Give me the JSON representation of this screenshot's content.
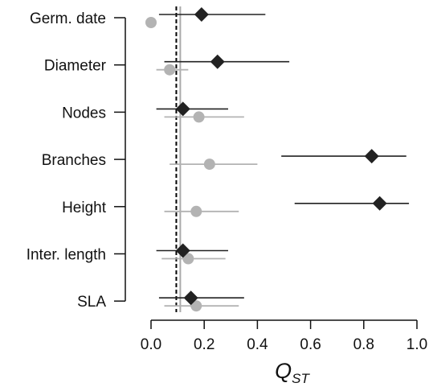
{
  "chart_data": {
    "type": "scatter",
    "title": "",
    "xlabel_main": "Q",
    "xlabel_sub": "ST",
    "xlim": [
      0.0,
      1.0
    ],
    "xticks": [
      "0.0",
      "0.2",
      "0.4",
      "0.6",
      "0.8",
      "1.0"
    ],
    "xtick_values": [
      0.0,
      0.2,
      0.4,
      0.6,
      0.8,
      1.0
    ],
    "categories": [
      "Germ. date",
      "Diameter",
      "Nodes",
      "Branches",
      "Height",
      "Inter. length",
      "SLA"
    ],
    "reference_lines": [
      {
        "value": 0.095,
        "style": "dashed",
        "color": "#000000"
      },
      {
        "value": 0.11,
        "style": "solid",
        "color": "#aaaaaa"
      }
    ],
    "series": [
      {
        "marker": "diamond",
        "color": "#222222",
        "points": [
          {
            "value": 0.19,
            "low": 0.03,
            "high": 0.43
          },
          {
            "value": 0.25,
            "low": 0.05,
            "high": 0.52
          },
          {
            "value": 0.12,
            "low": 0.02,
            "high": 0.29
          },
          {
            "value": 0.83,
            "low": 0.49,
            "high": 0.96
          },
          {
            "value": 0.86,
            "low": 0.54,
            "high": 0.97
          },
          {
            "value": 0.12,
            "low": 0.02,
            "high": 0.29
          },
          {
            "value": 0.15,
            "low": 0.03,
            "high": 0.35
          }
        ]
      },
      {
        "marker": "circle",
        "color": "#b3b3b3",
        "points": [
          {
            "value": 0.0,
            "low": null,
            "high": null
          },
          {
            "value": 0.07,
            "low": 0.02,
            "high": 0.14
          },
          {
            "value": 0.18,
            "low": 0.05,
            "high": 0.35
          },
          {
            "value": 0.22,
            "low": 0.07,
            "high": 0.4
          },
          {
            "value": 0.17,
            "low": 0.05,
            "high": 0.33
          },
          {
            "value": 0.14,
            "low": 0.04,
            "high": 0.28
          },
          {
            "value": 0.17,
            "low": 0.05,
            "high": 0.33
          }
        ]
      }
    ]
  }
}
